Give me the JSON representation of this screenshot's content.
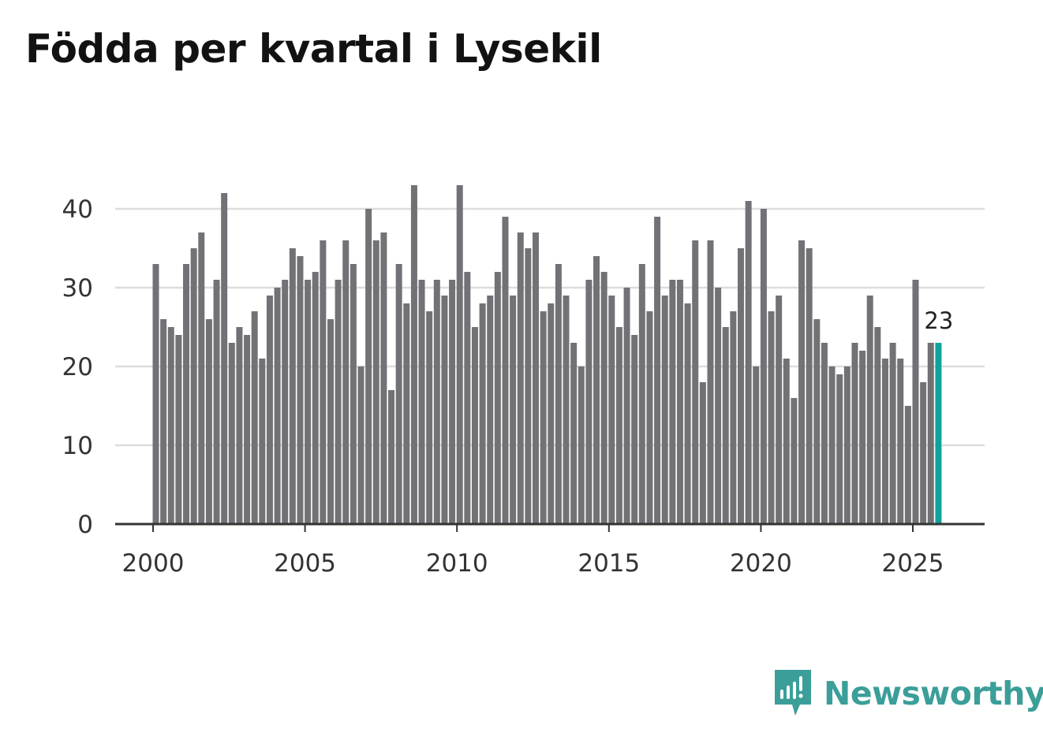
{
  "title": "Födda per kvartal i Lysekil",
  "brand": {
    "name": "Newsworthy"
  },
  "colors": {
    "bar": "#727176",
    "highlight": "#0ea39a",
    "grid": "#dddddd",
    "axis": "#333333",
    "brand": "#3b9e99"
  },
  "chart_data": {
    "type": "bar",
    "title": "Födda per kvartal i Lysekil",
    "xlabel": "",
    "ylabel": "",
    "ylim": [
      0,
      43
    ],
    "yticks": [
      0,
      10,
      20,
      30,
      40
    ],
    "xticks": [
      "2000",
      "2005",
      "2010",
      "2015",
      "2020",
      "2025"
    ],
    "start_year": 2000,
    "periods_per_year": 4,
    "values": [
      33,
      26,
      25,
      24,
      33,
      35,
      37,
      26,
      31,
      42,
      23,
      25,
      24,
      27,
      21,
      29,
      30,
      31,
      35,
      34,
      31,
      32,
      36,
      26,
      31,
      36,
      33,
      20,
      40,
      36,
      37,
      17,
      33,
      28,
      43,
      31,
      27,
      31,
      29,
      31,
      43,
      32,
      25,
      28,
      29,
      32,
      39,
      29,
      37,
      35,
      37,
      27,
      28,
      33,
      29,
      23,
      20,
      31,
      34,
      32,
      29,
      25,
      30,
      24,
      33,
      27,
      39,
      29,
      31,
      31,
      28,
      36,
      18,
      36,
      30,
      25,
      27,
      35,
      41,
      20,
      40,
      27,
      29,
      21,
      16,
      36,
      35,
      26,
      23,
      20,
      19,
      20,
      23,
      22,
      29,
      25,
      21,
      23,
      21,
      15,
      31,
      18,
      23,
      23
    ],
    "highlight_last": true,
    "last_value_label": "23"
  }
}
